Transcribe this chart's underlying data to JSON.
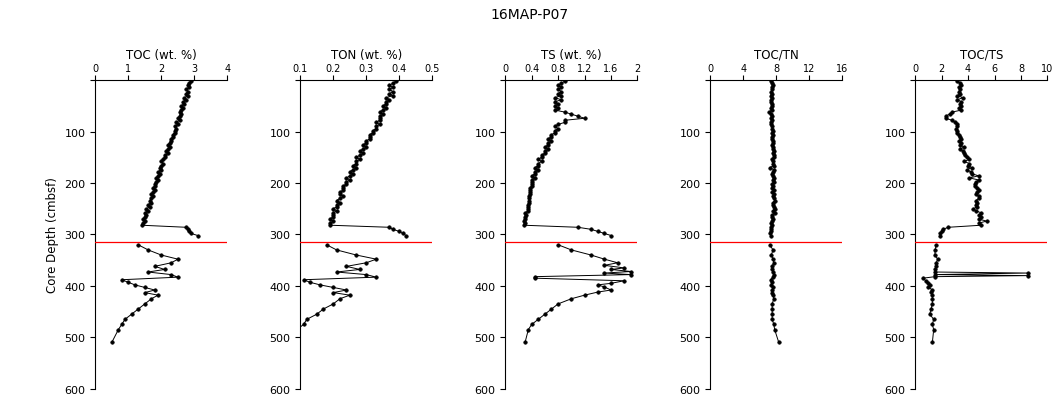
{
  "title": "16MAP-P07",
  "ylabel": "Core Depth (cmbsf)",
  "red_line_depth": 315,
  "panels": [
    {
      "title": "TOC (wt. %)",
      "xlim": [
        0,
        4
      ],
      "xticks": [
        0,
        1,
        2,
        3,
        4
      ],
      "xticklabels": [
        "0",
        "1",
        "2",
        "3",
        "4"
      ],
      "depth_upper": [
        2,
        6,
        10,
        14,
        18,
        22,
        26,
        30,
        34,
        38,
        42,
        46,
        50,
        54,
        58,
        62,
        66,
        70,
        74,
        78,
        82,
        86,
        90,
        94,
        98,
        102,
        106,
        110,
        114,
        118,
        122,
        126,
        130,
        134,
        138,
        142,
        146,
        150,
        154,
        158,
        162,
        166,
        170,
        174,
        178,
        182,
        186,
        190,
        194,
        198,
        202,
        206,
        210,
        214,
        218,
        222,
        226,
        230,
        234,
        238,
        242,
        246,
        250,
        254,
        258,
        262,
        266,
        270,
        274,
        278,
        282,
        286,
        290,
        294,
        298,
        302
      ],
      "values_upper": [
        2.9,
        2.85,
        2.8,
        2.85,
        2.75,
        2.8,
        2.75,
        2.8,
        2.7,
        2.75,
        2.65,
        2.7,
        2.6,
        2.65,
        2.6,
        2.55,
        2.6,
        2.55,
        2.5,
        2.55,
        2.45,
        2.5,
        2.4,
        2.45,
        2.4,
        2.4,
        2.35,
        2.35,
        2.3,
        2.3,
        2.25,
        2.2,
        2.25,
        2.2,
        2.15,
        2.2,
        2.1,
        2.1,
        2.05,
        2.0,
        2.05,
        2.0,
        1.95,
        2.0,
        1.9,
        1.95,
        1.9,
        1.85,
        1.9,
        1.85,
        1.8,
        1.8,
        1.75,
        1.8,
        1.75,
        1.7,
        1.75,
        1.7,
        1.65,
        1.7,
        1.6,
        1.65,
        1.55,
        1.6,
        1.5,
        1.55,
        1.5,
        1.45,
        1.5,
        1.45,
        1.4,
        2.75,
        2.8,
        2.85,
        2.9,
        3.1
      ],
      "depth_lower": [
        320,
        330,
        340,
        348,
        355,
        362,
        368,
        373,
        378,
        383,
        388,
        393,
        398,
        403,
        408,
        413,
        418,
        425,
        435,
        445,
        455,
        465,
        475,
        485,
        510
      ],
      "values_lower": [
        1.3,
        1.6,
        2.0,
        2.5,
        2.3,
        1.8,
        2.1,
        1.6,
        2.3,
        2.5,
        0.8,
        1.0,
        1.2,
        1.5,
        1.8,
        1.5,
        1.9,
        1.7,
        1.5,
        1.3,
        1.1,
        0.9,
        0.8,
        0.7,
        0.5
      ]
    },
    {
      "title": "TON (wt. %)",
      "xlim": [
        0.1,
        0.5
      ],
      "xticks": [
        0.1,
        0.2,
        0.3,
        0.4,
        0.5
      ],
      "xticklabels": [
        "0.1",
        "0.2",
        "0.3",
        "0.4",
        "0.5"
      ],
      "depth_upper": [
        2,
        6,
        10,
        14,
        18,
        22,
        26,
        30,
        34,
        38,
        42,
        46,
        50,
        54,
        58,
        62,
        66,
        70,
        74,
        78,
        82,
        86,
        90,
        94,
        98,
        102,
        106,
        110,
        114,
        118,
        122,
        126,
        130,
        134,
        138,
        142,
        146,
        150,
        154,
        158,
        162,
        166,
        170,
        174,
        178,
        182,
        186,
        190,
        194,
        198,
        202,
        206,
        210,
        214,
        218,
        222,
        226,
        230,
        234,
        238,
        242,
        246,
        250,
        254,
        258,
        262,
        266,
        270,
        274,
        278,
        282,
        286,
        290,
        294,
        298,
        302
      ],
      "values_upper": [
        0.39,
        0.38,
        0.37,
        0.38,
        0.37,
        0.38,
        0.37,
        0.38,
        0.36,
        0.37,
        0.36,
        0.36,
        0.35,
        0.36,
        0.35,
        0.34,
        0.35,
        0.34,
        0.34,
        0.34,
        0.33,
        0.34,
        0.33,
        0.33,
        0.32,
        0.32,
        0.31,
        0.31,
        0.31,
        0.3,
        0.3,
        0.29,
        0.3,
        0.29,
        0.28,
        0.29,
        0.28,
        0.27,
        0.28,
        0.27,
        0.27,
        0.26,
        0.27,
        0.26,
        0.25,
        0.26,
        0.25,
        0.24,
        0.25,
        0.24,
        0.24,
        0.23,
        0.23,
        0.23,
        0.22,
        0.22,
        0.23,
        0.22,
        0.21,
        0.22,
        0.21,
        0.21,
        0.2,
        0.21,
        0.2,
        0.2,
        0.2,
        0.19,
        0.2,
        0.19,
        0.19,
        0.37,
        0.38,
        0.4,
        0.41,
        0.42
      ],
      "depth_lower": [
        320,
        330,
        340,
        348,
        355,
        362,
        368,
        373,
        378,
        383,
        388,
        393,
        398,
        403,
        408,
        413,
        418,
        425,
        435,
        445,
        455,
        465,
        475,
        485,
        510
      ],
      "values_lower": [
        0.18,
        0.21,
        0.27,
        0.33,
        0.3,
        0.24,
        0.28,
        0.21,
        0.3,
        0.33,
        0.11,
        0.13,
        0.16,
        0.2,
        0.24,
        0.2,
        0.25,
        0.22,
        0.2,
        0.17,
        0.15,
        0.12,
        0.11,
        0.09,
        0.07
      ]
    },
    {
      "title": "TS (wt. %)",
      "xlim": [
        0,
        2
      ],
      "xticks": [
        0,
        0.4,
        0.8,
        1.2,
        1.6,
        2
      ],
      "xticklabels": [
        "0",
        "0.4",
        "0.8",
        "1.2",
        "1.6",
        "2"
      ],
      "depth_upper": [
        2,
        6,
        10,
        14,
        18,
        22,
        26,
        30,
        34,
        38,
        42,
        46,
        50,
        54,
        58,
        62,
        66,
        70,
        74,
        78,
        82,
        86,
        90,
        94,
        98,
        102,
        106,
        110,
        114,
        118,
        122,
        126,
        130,
        134,
        138,
        142,
        146,
        150,
        154,
        158,
        162,
        166,
        170,
        174,
        178,
        182,
        186,
        190,
        194,
        198,
        202,
        206,
        210,
        214,
        218,
        222,
        226,
        230,
        234,
        238,
        242,
        246,
        250,
        254,
        258,
        262,
        266,
        270,
        274,
        278,
        282,
        286,
        290,
        294,
        298,
        302
      ],
      "values_upper": [
        0.9,
        0.85,
        0.8,
        0.85,
        0.8,
        0.85,
        0.8,
        0.85,
        0.75,
        0.85,
        0.75,
        0.8,
        0.75,
        0.8,
        0.75,
        0.9,
        1.0,
        1.1,
        1.2,
        0.9,
        0.9,
        0.8,
        0.75,
        0.8,
        0.75,
        0.75,
        0.7,
        0.7,
        0.65,
        0.7,
        0.65,
        0.65,
        0.6,
        0.65,
        0.6,
        0.6,
        0.55,
        0.55,
        0.5,
        0.55,
        0.5,
        0.5,
        0.45,
        0.5,
        0.45,
        0.45,
        0.4,
        0.45,
        0.4,
        0.4,
        0.4,
        0.4,
        0.38,
        0.38,
        0.37,
        0.37,
        0.36,
        0.36,
        0.36,
        0.36,
        0.35,
        0.35,
        0.35,
        0.35,
        0.3,
        0.32,
        0.3,
        0.3,
        0.28,
        0.3,
        0.28,
        1.1,
        1.3,
        1.4,
        1.5,
        1.6
      ],
      "depth_lower": [
        320,
        330,
        340,
        348,
        355,
        360,
        365,
        368,
        372,
        375,
        378,
        382,
        385,
        390,
        395,
        398,
        402,
        408,
        412,
        418,
        425,
        435,
        445,
        455,
        465,
        475,
        485,
        510
      ],
      "values_lower": [
        0.8,
        1.0,
        1.3,
        1.5,
        1.7,
        1.5,
        1.8,
        1.6,
        1.9,
        1.5,
        1.9,
        0.45,
        0.45,
        1.8,
        1.6,
        1.4,
        1.5,
        1.6,
        1.4,
        1.2,
        1.0,
        0.8,
        0.7,
        0.6,
        0.5,
        0.4,
        0.35,
        0.3
      ]
    },
    {
      "title": "TOC/TN",
      "xlim": [
        0,
        16
      ],
      "xticks": [
        0,
        4,
        8,
        12,
        16
      ],
      "xticklabels": [
        "0",
        "4",
        "8",
        "12",
        "16"
      ],
      "depth_upper": [
        2,
        6,
        10,
        14,
        18,
        22,
        26,
        30,
        34,
        38,
        42,
        46,
        50,
        54,
        58,
        62,
        66,
        70,
        74,
        78,
        82,
        86,
        90,
        94,
        98,
        102,
        106,
        110,
        114,
        118,
        122,
        126,
        130,
        134,
        138,
        142,
        146,
        150,
        154,
        158,
        162,
        166,
        170,
        174,
        178,
        182,
        186,
        190,
        194,
        198,
        202,
        206,
        210,
        214,
        218,
        222,
        226,
        230,
        234,
        238,
        242,
        246,
        250,
        254,
        258,
        262,
        266,
        270,
        274,
        278,
        282,
        286,
        290,
        294,
        298,
        302
      ],
      "values_upper": [
        7.4,
        7.5,
        7.6,
        7.5,
        7.5,
        7.4,
        7.5,
        7.3,
        7.5,
        7.4,
        7.4,
        7.5,
        7.5,
        7.4,
        7.5,
        7.1,
        7.4,
        7.5,
        7.4,
        7.5,
        7.4,
        7.4,
        7.5,
        7.5,
        7.6,
        7.5,
        7.6,
        7.5,
        7.5,
        7.6,
        7.6,
        7.5,
        7.6,
        7.6,
        7.7,
        7.6,
        7.7,
        7.7,
        7.5,
        7.6,
        7.6,
        7.7,
        7.2,
        7.7,
        7.6,
        7.5,
        7.6,
        7.7,
        7.6,
        7.7,
        7.5,
        7.6,
        7.5,
        7.7,
        7.5,
        7.7,
        7.6,
        7.7,
        7.8,
        7.6,
        7.6,
        7.7,
        7.8,
        7.6,
        7.8,
        7.5,
        7.5,
        7.6,
        7.5,
        7.4,
        7.5,
        7.4,
        7.4,
        7.3,
        7.2,
        7.4
      ],
      "depth_lower": [
        320,
        330,
        340,
        348,
        355,
        362,
        368,
        373,
        378,
        383,
        388,
        393,
        398,
        403,
        408,
        413,
        418,
        425,
        435,
        445,
        455,
        465,
        475,
        485,
        510
      ],
      "values_lower": [
        7.2,
        7.6,
        7.4,
        7.6,
        7.7,
        7.5,
        7.5,
        7.6,
        7.7,
        7.6,
        7.3,
        7.5,
        7.4,
        7.6,
        7.5,
        7.5,
        7.6,
        7.7,
        7.5,
        7.5,
        7.5,
        7.5,
        7.7,
        7.8,
        8.3
      ]
    },
    {
      "title": "TOC/TS",
      "xlim": [
        0,
        10
      ],
      "xticks": [
        0,
        2,
        4,
        6,
        8,
        10
      ],
      "xticklabels": [
        "0",
        "2",
        "4",
        "6",
        "8",
        "10"
      ],
      "depth_upper": [
        2,
        6,
        10,
        14,
        18,
        22,
        26,
        30,
        34,
        38,
        42,
        46,
        50,
        54,
        58,
        62,
        66,
        70,
        74,
        78,
        82,
        86,
        90,
        94,
        98,
        102,
        106,
        110,
        114,
        118,
        122,
        126,
        130,
        134,
        138,
        142,
        146,
        150,
        154,
        158,
        162,
        166,
        170,
        174,
        178,
        182,
        186,
        190,
        194,
        198,
        202,
        206,
        210,
        214,
        218,
        222,
        226,
        230,
        234,
        238,
        242,
        246,
        250,
        254,
        258,
        262,
        266,
        270,
        274,
        278,
        282,
        286,
        290,
        294,
        298,
        302
      ],
      "values_upper": [
        3.2,
        3.4,
        3.5,
        3.3,
        3.4,
        3.3,
        3.4,
        3.2,
        3.6,
        3.2,
        3.5,
        3.4,
        3.5,
        3.3,
        3.5,
        2.8,
        2.6,
        2.3,
        2.3,
        2.8,
        3.0,
        3.2,
        3.2,
        3.1,
        3.2,
        3.2,
        3.3,
        3.4,
        3.5,
        3.3,
        3.5,
        3.4,
        3.7,
        3.4,
        3.6,
        3.7,
        3.8,
        3.9,
        4.1,
        3.7,
        4.1,
        4.0,
        4.3,
        3.9,
        4.2,
        4.3,
        4.8,
        4.1,
        4.8,
        4.6,
        4.5,
        4.5,
        4.7,
        4.8,
        4.7,
        4.6,
        4.8,
        4.8,
        4.6,
        4.7,
        4.6,
        4.7,
        4.4,
        4.6,
        5.0,
        4.8,
        5.0,
        4.8,
        5.4,
        4.8,
        5.0,
        2.5,
        2.1,
        2.0,
        1.9,
        1.9
      ],
      "depth_lower": [
        320,
        330,
        340,
        348,
        355,
        362,
        368,
        373,
        375,
        378,
        380,
        382,
        385,
        390,
        395,
        398,
        402,
        408,
        412,
        418,
        425,
        435,
        445,
        455,
        465,
        475,
        485,
        510
      ],
      "values_lower": [
        1.6,
        1.5,
        1.5,
        1.7,
        1.6,
        1.6,
        1.5,
        1.5,
        8.5,
        1.5,
        8.5,
        1.5,
        0.6,
        0.8,
        1.0,
        1.1,
        1.0,
        1.3,
        1.2,
        1.3,
        1.3,
        1.3,
        1.2,
        1.1,
        1.4,
        1.3,
        1.4,
        1.3
      ]
    }
  ],
  "ylim": [
    600,
    0
  ],
  "yticks": [
    0,
    100,
    200,
    300,
    400,
    500,
    600
  ],
  "background_color": "#ffffff",
  "line_color": "#000000",
  "marker": "o",
  "markersize": 2.5,
  "linewidth": 0.7
}
